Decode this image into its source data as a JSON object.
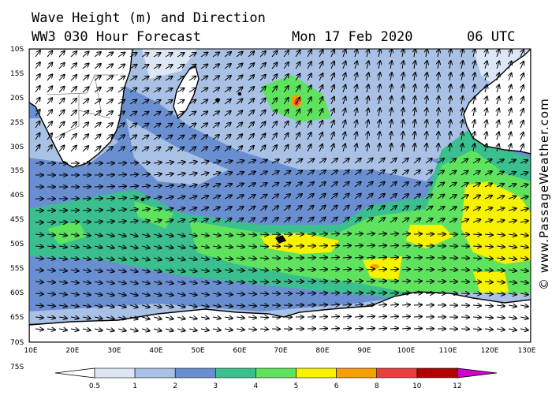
{
  "header": {
    "title_line1": "Wave Height (m) and Direction",
    "title_line2": "WW3 030 Hour Forecast",
    "date": "Mon 17 Feb 2020",
    "time": "06 UTC"
  },
  "credit": "© www.PassageWeather.com",
  "map": {
    "lat_labels": [
      "10S",
      "15S",
      "20S",
      "25S",
      "30S",
      "35S",
      "40S",
      "45S",
      "50S",
      "55S",
      "60S",
      "65S",
      "70S",
      "75S"
    ],
    "lon_labels": [
      "10E",
      "20E",
      "30E",
      "40E",
      "50E",
      "60E",
      "70E",
      "80E",
      "90E",
      "100E",
      "110E",
      "120E",
      "130E"
    ],
    "region": "South Indian Ocean",
    "wave_direction": "predominantly eastward / north-eastward"
  },
  "legend": {
    "labels": [
      "0.5",
      "1",
      "2",
      "3",
      "4",
      "5",
      "6",
      "8",
      "10",
      "12"
    ],
    "colors": [
      "#dce6f5",
      "#a9c1e4",
      "#6a8fd0",
      "#3cbf8f",
      "#5fe35f",
      "#f7f200",
      "#f5a000",
      "#e84040",
      "#b00000",
      "#d000d0"
    ],
    "low_color": "#ffffff"
  },
  "colors": {
    "land": "#ffffff",
    "coast": "#000000",
    "ocean_base": "#6a8fd0"
  }
}
